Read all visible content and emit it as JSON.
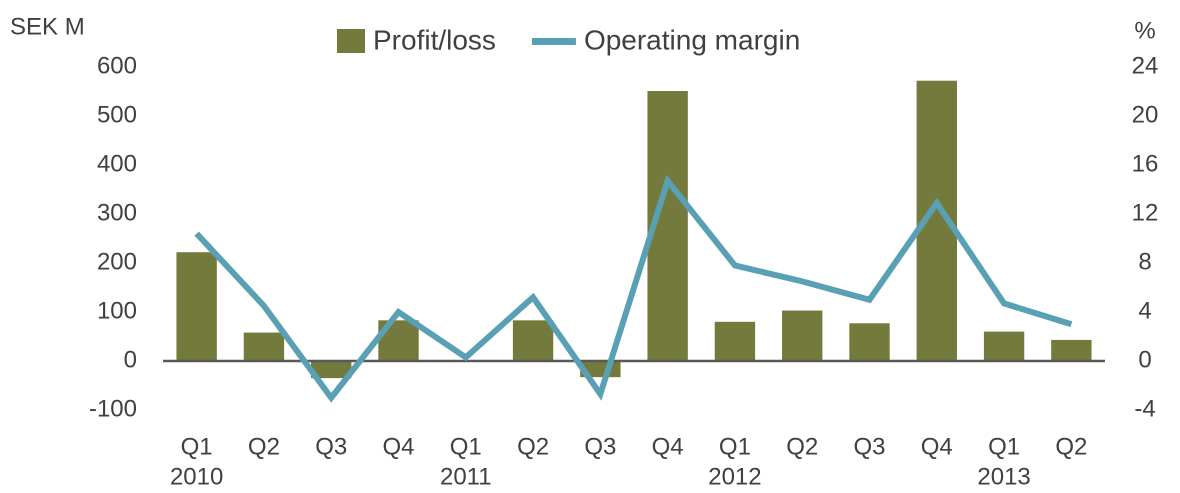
{
  "chart_data": {
    "type": "bar_line",
    "y_label": "SEK M",
    "y2_label": "%",
    "categories": [
      "Q1",
      "Q2",
      "Q3",
      "Q4",
      "Q1",
      "Q2",
      "Q3",
      "Q4",
      "Q1",
      "Q2",
      "Q3",
      "Q4",
      "Q1",
      "Q2"
    ],
    "category_groups": [
      {
        "label": "2010",
        "start": 0
      },
      {
        "label": "2011",
        "start": 4
      },
      {
        "label": "2012",
        "start": 8
      },
      {
        "label": "2013",
        "start": 12
      }
    ],
    "series": [
      {
        "name": "Profit/loss",
        "type": "bar",
        "color": "#737a3c",
        "values": [
          222,
          58,
          -35,
          83,
          2,
          83,
          -33,
          551,
          80,
          103,
          77,
          572,
          60,
          43
        ]
      },
      {
        "name": "Operating margin",
        "type": "line",
        "axis": "y2",
        "color": "#5aa0b5",
        "values": [
          10.4,
          4.5,
          -3.0,
          4.0,
          0.3,
          5.2,
          -2.7,
          14.7,
          7.8,
          6.5,
          5.0,
          12.9,
          4.7,
          3.0
        ]
      }
    ],
    "ylim": [
      -100,
      600
    ],
    "yticks": [
      -100,
      0,
      100,
      200,
      300,
      400,
      500,
      600
    ],
    "y2lim": [
      -4,
      24
    ],
    "y2ticks": [
      -4,
      0,
      4,
      8,
      12,
      16,
      20,
      24
    ],
    "legend": "top"
  }
}
